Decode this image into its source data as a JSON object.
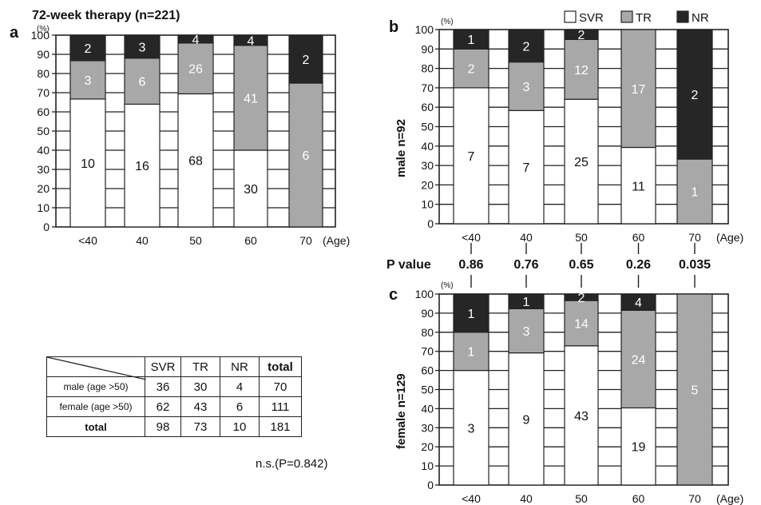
{
  "figure": {
    "title": "72-week therapy (n=221)",
    "panel_letters": {
      "a": "a",
      "b": "b",
      "c": "c"
    },
    "percent_unit": "(%)",
    "age_unit": "(Age)",
    "y_ticks": [
      "0",
      "10",
      "20",
      "30",
      "40",
      "50",
      "60",
      "70",
      "80",
      "90",
      "100"
    ],
    "legend": [
      {
        "label": "SVR",
        "color": "#ffffff"
      },
      {
        "label": "TR",
        "color": "#a8a8a8"
      },
      {
        "label": "NR",
        "color": "#262626"
      }
    ],
    "p_value_label": "P value",
    "p_values": [
      "0.86",
      "0.76",
      "0.65",
      "0.26",
      "0.035"
    ]
  },
  "chart_data": [
    {
      "type": "bar",
      "stacked": true,
      "panel": "a",
      "title": "72-week therapy (n=221)",
      "ylabel": "",
      "xlabel": "(Age)",
      "ylim": [
        0,
        100
      ],
      "categories": [
        "<40",
        "40",
        "50",
        "60",
        "70"
      ],
      "series": [
        {
          "name": "SVR",
          "values": [
            66.7,
            64.0,
            69.4,
            40.0,
            0.0
          ],
          "counts": [
            "10",
            "16",
            "68",
            "30",
            ""
          ]
        },
        {
          "name": "TR",
          "values": [
            20.0,
            24.0,
            26.5,
            54.7,
            75.0
          ],
          "counts": [
            "3",
            "6",
            "26",
            "41",
            "6"
          ]
        },
        {
          "name": "NR",
          "values": [
            13.3,
            12.0,
            4.1,
            5.3,
            25.0
          ],
          "counts": [
            "2",
            "3",
            "4",
            "4",
            "2"
          ]
        }
      ]
    },
    {
      "type": "bar",
      "stacked": true,
      "panel": "b",
      "title": "",
      "ylabel": "male n=92",
      "xlabel": "(Age)",
      "ylim": [
        0,
        100
      ],
      "categories": [
        "<40",
        "40",
        "50",
        "60",
        "70"
      ],
      "series": [
        {
          "name": "SVR",
          "values": [
            70.0,
            58.3,
            64.1,
            39.3,
            0.0
          ],
          "counts": [
            "7",
            "7",
            "25",
            "11",
            ""
          ]
        },
        {
          "name": "TR",
          "values": [
            20.0,
            25.0,
            30.8,
            60.7,
            33.3
          ],
          "counts": [
            "2",
            "3",
            "12",
            "17",
            "1"
          ]
        },
        {
          "name": "NR",
          "values": [
            10.0,
            16.7,
            5.1,
            0.0,
            66.7
          ],
          "counts": [
            "1",
            "2",
            "2",
            "",
            "2"
          ]
        }
      ]
    },
    {
      "type": "bar",
      "stacked": true,
      "panel": "c",
      "title": "",
      "ylabel": "female n=129",
      "xlabel": "(Age)",
      "ylim": [
        0,
        100
      ],
      "categories": [
        "<40",
        "40",
        "50",
        "60",
        "70"
      ],
      "series": [
        {
          "name": "SVR",
          "values": [
            60.0,
            69.2,
            72.9,
            40.4,
            0.0
          ],
          "counts": [
            "3",
            "9",
            "43",
            "19",
            ""
          ]
        },
        {
          "name": "TR",
          "values": [
            20.0,
            23.1,
            23.7,
            51.1,
            100.0
          ],
          "counts": [
            "1",
            "3",
            "14",
            "24",
            "5"
          ]
        },
        {
          "name": "NR",
          "values": [
            20.0,
            7.7,
            3.4,
            8.5,
            0.0
          ],
          "counts": [
            "1",
            "1",
            "2",
            "4",
            ""
          ]
        }
      ]
    }
  ],
  "summary_table": {
    "columns": [
      "SVR",
      "TR",
      "NR",
      "total"
    ],
    "rows": [
      {
        "label": "male (age >50)",
        "cells": [
          "36",
          "30",
          "4",
          "70"
        ]
      },
      {
        "label": "female (age >50)",
        "cells": [
          "62",
          "43",
          "6",
          "111"
        ]
      },
      {
        "label": "total",
        "cells": [
          "98",
          "73",
          "10",
          "181"
        ]
      }
    ],
    "note": "n.s.(P=0.842)"
  }
}
